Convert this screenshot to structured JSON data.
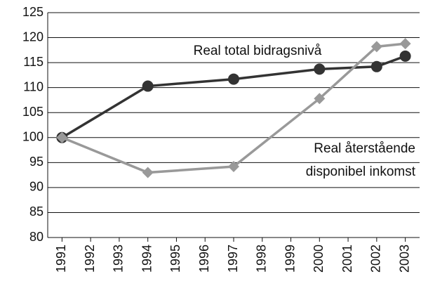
{
  "chart_data": {
    "type": "line",
    "x": [
      1991,
      1994,
      1997,
      2000,
      2002,
      2003
    ],
    "series": [
      {
        "name": "Real total bidragsnivå",
        "color": "#333333",
        "marker": "circle",
        "values": [
          100,
          110.3,
          111.7,
          113.7,
          114.2,
          116.3
        ]
      },
      {
        "name": "Real återstående disponibel inkomst",
        "color": "#999999",
        "marker": "diamond",
        "values": [
          100,
          93,
          94.2,
          107.8,
          118.2,
          118.8
        ]
      }
    ],
    "annotations": [
      {
        "lines": [
          "Real total bidragsnivå"
        ]
      },
      {
        "lines": [
          "Real återstående",
          "disponibel inkomst"
        ]
      }
    ],
    "xlim": [
      1990.5,
      2003.5
    ],
    "xticks": [
      1991,
      1992,
      1993,
      1994,
      1995,
      1996,
      1997,
      1998,
      1999,
      2000,
      2001,
      2002,
      2003
    ],
    "ylim": [
      80,
      125
    ],
    "yticks": [
      80,
      85,
      90,
      95,
      100,
      105,
      110,
      115,
      120,
      125
    ],
    "grid": true
  }
}
